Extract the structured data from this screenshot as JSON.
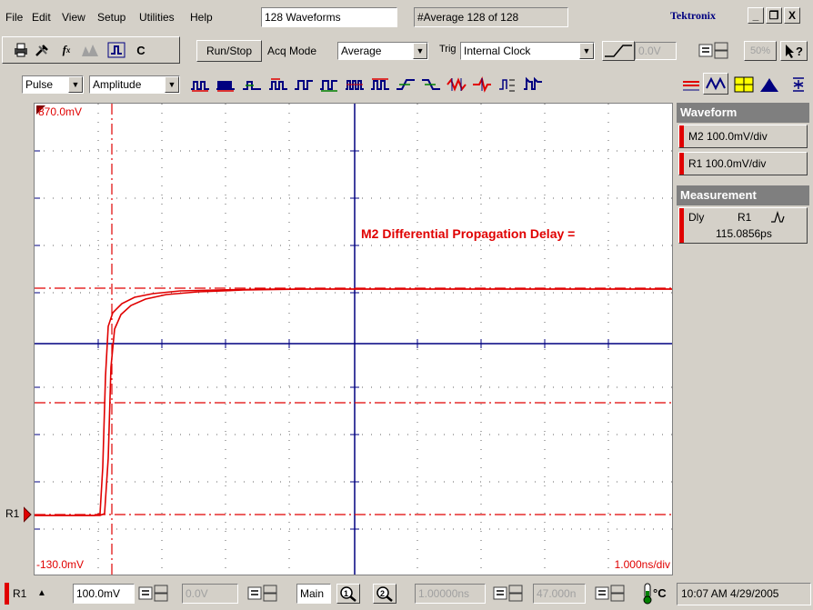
{
  "menu": {
    "items": [
      "File",
      "Edit",
      "View",
      "Setup",
      "Utilities",
      "Help"
    ],
    "waveforms_field": "128 Waveforms",
    "average_field": "#Average 128 of 128",
    "brand": "Tektronix"
  },
  "window_buttons": {
    "minimize": "_",
    "restore": "❐",
    "close": "X"
  },
  "toolbar": {
    "c_label": "C",
    "run_stop": "Run/Stop",
    "acq_mode_label": "Acq Mode",
    "acq_mode_value": "Average",
    "trig_label": "Trig",
    "trig_value": "Internal Clock",
    "trig_level": "0.0V",
    "zoom_pct": "50%"
  },
  "measure_bar": {
    "category_value": "Pulse",
    "measurement_value": "Amplitude"
  },
  "screen": {
    "top_level": "870.0mV",
    "bottom_level": "-130.0mV",
    "timebase": "1.000ns/div",
    "annotation": "M2 Differential Propagation Delay =",
    "marker_label": "R1"
  },
  "panel": {
    "waveform_header": "Waveform",
    "m2_label": "M2 100.0mV/div",
    "r1_label": "R1 100.0mV/div",
    "measurement_header": "Measurement",
    "meas_type": "Dly",
    "meas_source": "R1",
    "meas_value": "115.0856ps"
  },
  "status": {
    "channel": "R1",
    "scale": "100.0mV",
    "offset": "0.0V",
    "timebase_mode": "Main",
    "horiz_pos": "1.00000ns",
    "horiz_record": "47.000n",
    "temp_unit": "°C",
    "datetime": "10:07 AM 4/29/2005"
  },
  "colors": {
    "trace": "#e00000",
    "grid_axis": "#000080",
    "panel_header": "#7f7f7f",
    "brand": "#000080"
  }
}
